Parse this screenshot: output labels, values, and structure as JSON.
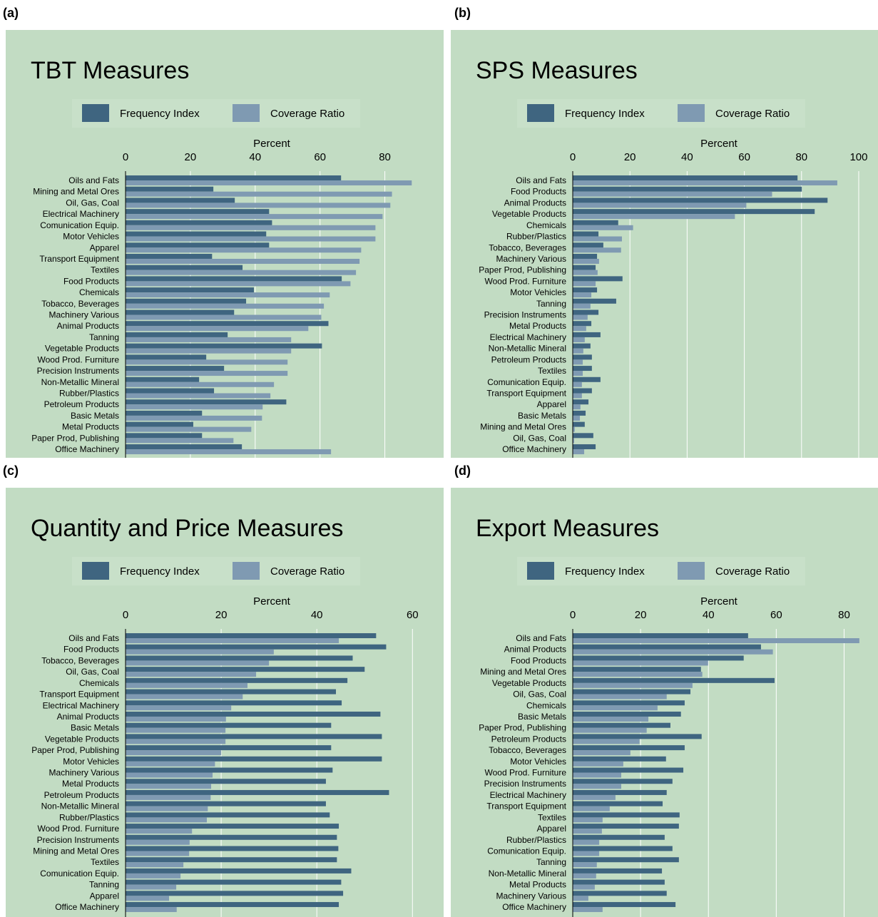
{
  "chart_data": [
    {
      "type": "bar",
      "orientation": "horizontal",
      "panel": "(a)",
      "title": "TBT Measures",
      "x_label": "Percent",
      "categories": [
        "Oils and Fats",
        "Mining and Metal Ores",
        "Oil, Gas, Coal",
        "Electrical Machinery",
        "Comunication Equip.",
        "Motor Vehicles",
        "Apparel",
        "Transport Equipment",
        "Textiles",
        "Food Products",
        "Chemicals",
        "Tobacco, Beverages",
        "Machinery Various",
        "Animal Products",
        "Tanning",
        "Vegetable Products",
        "Wood Prod. Furniture",
        "Precision Instruments",
        "Non-Metallic Mineral",
        "Rubber/Plastics",
        "Petroleum Products",
        "Basic Metals",
        "Metal Products",
        "Paper Prod, Publishing",
        "Office Machinery"
      ],
      "series": [
        {
          "name": "Frequency Index",
          "color": "#3f6580",
          "values": [
            66.5,
            27.1,
            33.7,
            44.3,
            45.2,
            43.4,
            44.3,
            26.7,
            36.1,
            66.7,
            39.6,
            37.2,
            33.5,
            62.6,
            31.5,
            60.6,
            24.9,
            30.4,
            22.7,
            27.3,
            49.6,
            23.6,
            20.9,
            23.6,
            35.9
          ]
        },
        {
          "name": "Coverage Ratio",
          "color": "#7f9ab2",
          "values": [
            88.3,
            82.2,
            81.7,
            79.3,
            77.1,
            77.1,
            72.7,
            72.2,
            71.1,
            69.4,
            63.0,
            61.2,
            60.4,
            56.4,
            51.1,
            51.1,
            50.0,
            50.0,
            45.8,
            44.7,
            42.3,
            42.1,
            38.8,
            33.3,
            63.4
          ]
        }
      ],
      "xlim": [
        0,
        90
      ],
      "xticks": [
        0,
        20,
        40,
        60,
        80
      ],
      "grid": true
    },
    {
      "type": "bar",
      "orientation": "horizontal",
      "panel": "(b)",
      "title": "SPS Measures",
      "x_label": "Percent",
      "categories": [
        "Oils and Fats",
        "Food Products",
        "Animal Products",
        "Vegetable Products",
        "Chemicals",
        "Rubber/Plastics",
        "Tobacco, Beverages",
        "Machinery Various",
        "Paper Prod, Publishing",
        "Wood Prod. Furniture",
        "Motor Vehicles",
        "Tanning",
        "Precision Instruments",
        "Metal Products",
        "Electrical Machinery",
        "Non-Metallic Mineral",
        "Petroleum Products",
        "Textiles",
        "Comunication Equip.",
        "Transport Equipment",
        "Apparel",
        "Basic Metals",
        "Mining and Metal Ores",
        "Oil, Gas, Coal",
        "Office Machinery"
      ],
      "series": [
        {
          "name": "Frequency Index",
          "color": "#3f6580",
          "values": [
            78.6,
            80.1,
            89.1,
            84.6,
            15.9,
            9.0,
            10.7,
            8.5,
            8.0,
            17.4,
            8.5,
            15.2,
            9.0,
            6.5,
            9.7,
            6.2,
            6.7,
            6.7,
            9.7,
            6.7,
            5.5,
            4.5,
            4.2,
            7.2,
            8.0
          ]
        },
        {
          "name": "Coverage Ratio",
          "color": "#7f9ab2",
          "values": [
            92.5,
            69.7,
            60.7,
            56.7,
            21.1,
            17.2,
            16.9,
            9.2,
            8.7,
            8.0,
            6.5,
            6.2,
            5.2,
            4.7,
            4.2,
            3.7,
            3.5,
            3.5,
            3.2,
            3.2,
            2.7,
            2.5,
            0.7,
            0.5,
            4.0
          ]
        }
      ],
      "xlim": [
        0,
        102
      ],
      "xticks": [
        0,
        20,
        40,
        60,
        80,
        100
      ],
      "grid": true
    },
    {
      "type": "bar",
      "orientation": "horizontal",
      "panel": "(c)",
      "title": "Quantity and Price Measures",
      "x_label": "Percent",
      "categories": [
        "Oils and Fats",
        "Food Products",
        "Tobacco, Beverages",
        "Oil, Gas, Coal",
        "Chemicals",
        "Transport Equipment",
        "Electrical Machinery",
        "Animal Products",
        "Basic Metals",
        "Vegetable Products",
        "Paper Prod, Publishing",
        "Motor Vehicles",
        "Machinery Various",
        "Metal Products",
        "Petroleum Products",
        "Non-Metallic Mineral",
        "Rubber/Plastics",
        "Wood Prod. Furniture",
        "Precision Instruments",
        "Mining and Metal Ores",
        "Textiles",
        "Comunication Equip.",
        "Tanning",
        "Apparel",
        "Office Machinery"
      ],
      "series": [
        {
          "name": "Frequency Index",
          "color": "#3f6580",
          "values": [
            52.4,
            54.5,
            47.5,
            50.0,
            46.4,
            44.0,
            45.2,
            53.3,
            43.0,
            53.6,
            43.0,
            53.6,
            43.3,
            41.9,
            55.1,
            41.9,
            42.7,
            44.6,
            44.2,
            44.5,
            44.2,
            47.2,
            45.1,
            45.5,
            44.6
          ]
        },
        {
          "name": "Coverage Ratio",
          "color": "#7f9ab2",
          "values": [
            44.6,
            31.0,
            30.0,
            27.3,
            25.5,
            24.5,
            22.1,
            21.0,
            20.9,
            20.9,
            20.0,
            18.7,
            18.2,
            17.9,
            17.8,
            17.2,
            17.0,
            13.9,
            13.4,
            13.3,
            12.1,
            11.5,
            10.6,
            9.1,
            10.7
          ]
        }
      ],
      "xlim": [
        0,
        61
      ],
      "xticks": [
        0,
        20,
        40,
        60
      ],
      "grid": true
    },
    {
      "type": "bar",
      "orientation": "horizontal",
      "panel": "(d)",
      "title": "Export Measures",
      "x_label": "Percent",
      "categories": [
        "Oils and Fats",
        "Animal Products",
        "Food Products",
        "Mining and Metal Ores",
        "Vegetable Products",
        "Oil, Gas, Coal",
        "Chemicals",
        "Basic Metals",
        "Paper Prod, Publishing",
        "Petroleum Products",
        "Tobacco, Beverages",
        "Motor Vehicles",
        "Wood Prod. Furniture",
        "Precision Instruments",
        "Electrical Machinery",
        "Transport Equipment",
        "Textiles",
        "Apparel",
        "Rubber/Plastics",
        "Comunication Equip.",
        "Tanning",
        "Non-Metallic Mineral",
        "Metal Products",
        "Machinery Various",
        "Office Machinery"
      ],
      "series": [
        {
          "name": "Frequency Index",
          "color": "#3f6580",
          "values": [
            51.7,
            55.5,
            50.4,
            37.8,
            59.5,
            34.7,
            33.0,
            31.9,
            28.8,
            38.0,
            33.0,
            27.5,
            32.6,
            29.4,
            27.7,
            26.5,
            31.5,
            31.3,
            27.1,
            29.4,
            31.3,
            26.3,
            27.1,
            27.7,
            30.3
          ]
        },
        {
          "name": "Coverage Ratio",
          "color": "#7f9ab2",
          "values": [
            84.5,
            59.0,
            39.9,
            38.2,
            35.3,
            27.7,
            25.0,
            22.3,
            21.8,
            19.7,
            17.0,
            14.9,
            14.3,
            14.3,
            12.6,
            10.9,
            8.8,
            8.6,
            7.8,
            7.8,
            7.1,
            6.9,
            6.5,
            4.6,
            8.8
          ]
        }
      ],
      "xlim": [
        0,
        86
      ],
      "xticks": [
        0,
        20,
        40,
        60,
        80
      ],
      "grid": true
    }
  ]
}
